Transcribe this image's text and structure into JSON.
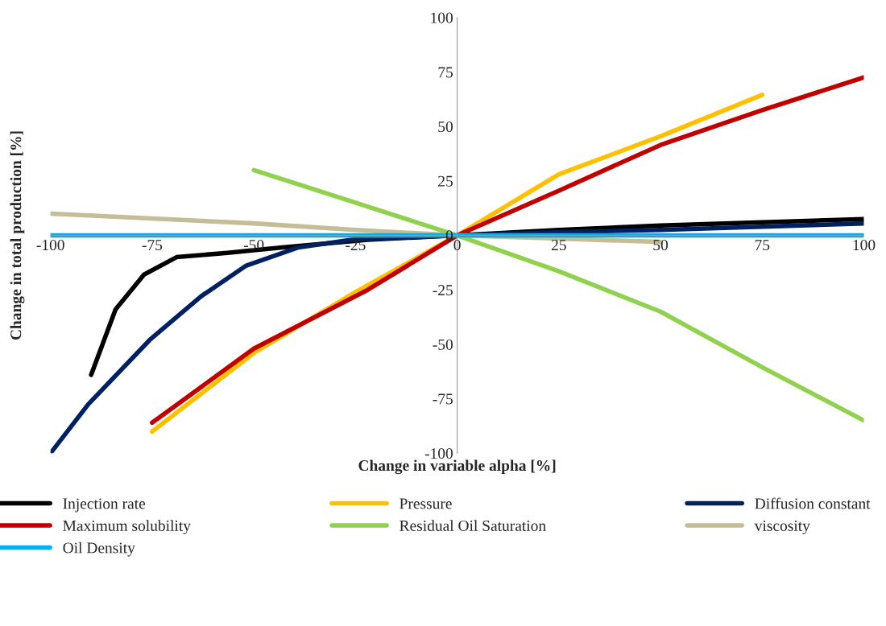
{
  "chart_data": {
    "type": "line",
    "xlabel": "Change in variable alpha [%]",
    "ylabel": "Change in total production [%]",
    "xlim": [
      -100,
      100
    ],
    "xticks": [
      -100,
      -75,
      -50,
      -25,
      0,
      25,
      50,
      75,
      100
    ],
    "ylim": [
      -100,
      100
    ],
    "yticks": [
      -100,
      -75,
      -50,
      -25,
      0,
      25,
      50,
      75,
      100
    ],
    "grid": false,
    "legend": "bottom",
    "marker": "none",
    "line_style": "solid",
    "series": [
      {
        "name": "Injection rate",
        "color": "#000000",
        "x": [
          -90,
          -84,
          -77,
          -69,
          -56.5,
          -43,
          -22,
          0,
          25,
          50,
          75,
          100
        ],
        "values": [
          -64,
          -34,
          -18,
          -10,
          -8,
          -5.5,
          -2,
          0,
          2.5,
          4.5,
          6,
          7.5
        ]
      },
      {
        "name": "Pressure",
        "color": "#ffc000",
        "x": [
          -75,
          -50,
          -25,
          0,
          25,
          50,
          75
        ],
        "values": [
          -90,
          -54,
          -26,
          0,
          28,
          45.5,
          64.5
        ]
      },
      {
        "name": "Diffusion constant",
        "color": "#002060",
        "x": [
          -100,
          -90.7,
          -75.6,
          -63,
          -52,
          -39,
          -26,
          0,
          25,
          50,
          75,
          100
        ],
        "values": [
          -100,
          -77.5,
          -48,
          -28,
          -14,
          -5.5,
          -2,
          0,
          1.5,
          2.5,
          4,
          5.5
        ]
      },
      {
        "name": "Maximum solubility",
        "color": "#c00000",
        "x": [
          -75,
          -50,
          -22,
          0,
          25,
          50,
          75,
          100
        ],
        "values": [
          -86,
          -52,
          -25,
          0,
          20.5,
          41.5,
          57.5,
          72.5
        ]
      },
      {
        "name": "Residual Oil Saturation",
        "color": "#92d050",
        "x": [
          -50,
          -25,
          0,
          25,
          50,
          75,
          100
        ],
        "values": [
          30,
          15,
          0,
          -16.5,
          -35,
          -60.5,
          -85
        ]
      },
      {
        "name": "viscosity",
        "color": "#c4bd97",
        "x": [
          -100,
          -50,
          -25,
          0,
          25,
          50
        ],
        "values": [
          10,
          5.5,
          2.5,
          0,
          -1.5,
          -3
        ]
      },
      {
        "name": "Oil Density",
        "color": "#00b0f0",
        "x": [
          -100,
          -50,
          0,
          50,
          100
        ],
        "values": [
          0,
          0,
          0,
          0,
          0
        ]
      }
    ]
  }
}
